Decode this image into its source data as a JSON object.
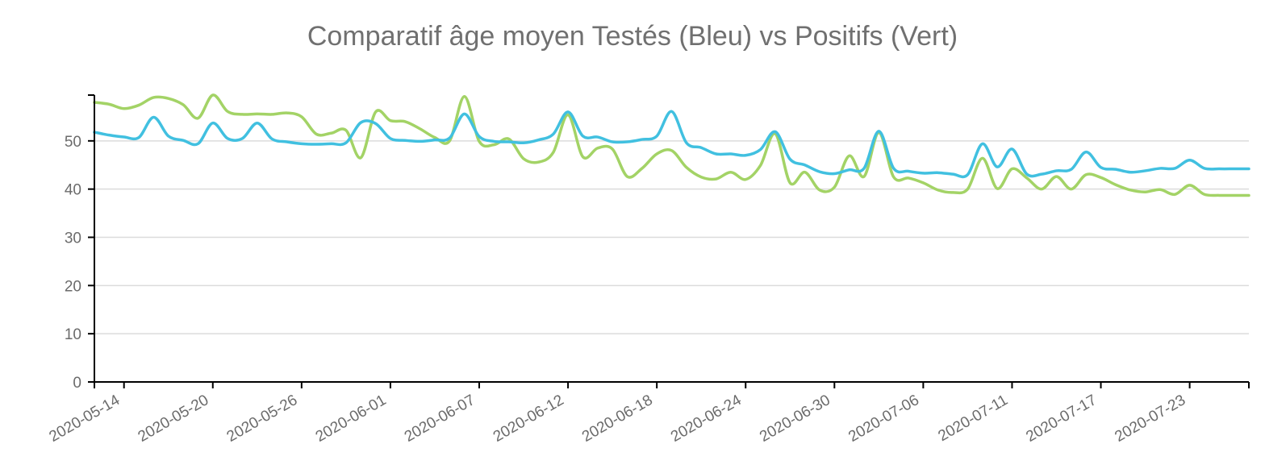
{
  "chart_data": {
    "type": "line",
    "title": "Comparatif âge moyen Testés (Bleu) vs Positifs (Vert)",
    "xlabel": "",
    "ylabel": "",
    "ylim": [
      0,
      60
    ],
    "yticks": [
      0,
      10,
      20,
      30,
      40,
      50
    ],
    "grid": true,
    "legend": "none",
    "x_tick_labels": [
      "2020-05-14",
      "2020-05-20",
      "2020-05-26",
      "2020-06-01",
      "2020-06-07",
      "2020-06-12",
      "2020-06-18",
      "2020-06-24",
      "2020-06-30",
      "2020-07-06",
      "2020-07-11",
      "2020-07-17",
      "2020-07-23"
    ],
    "x_tick_indices": [
      2,
      8,
      14,
      20,
      26,
      32,
      38,
      44,
      50,
      56,
      62,
      68,
      74
    ],
    "x": [
      "2020-05-12",
      "2020-05-13",
      "2020-05-14",
      "2020-05-15",
      "2020-05-16",
      "2020-05-17",
      "2020-05-18",
      "2020-05-19",
      "2020-05-20",
      "2020-05-21",
      "2020-05-22",
      "2020-05-23",
      "2020-05-24",
      "2020-05-25",
      "2020-05-26",
      "2020-05-27",
      "2020-05-28",
      "2020-05-29",
      "2020-05-30",
      "2020-05-31",
      "2020-06-01",
      "2020-06-02",
      "2020-06-03",
      "2020-06-04",
      "2020-06-05",
      "2020-06-06",
      "2020-06-07",
      "2020-06-08",
      "2020-06-09",
      "2020-06-10",
      "2020-06-11",
      "2020-06-12",
      "2020-06-13",
      "2020-06-14",
      "2020-06-15",
      "2020-06-16",
      "2020-06-17",
      "2020-06-18",
      "2020-06-19",
      "2020-06-20",
      "2020-06-21",
      "2020-06-22",
      "2020-06-23",
      "2020-06-24",
      "2020-06-25",
      "2020-06-26",
      "2020-06-27",
      "2020-06-28",
      "2020-06-29",
      "2020-06-30",
      "2020-07-01",
      "2020-07-02",
      "2020-07-03",
      "2020-07-04",
      "2020-07-05",
      "2020-07-06",
      "2020-07-07",
      "2020-07-08",
      "2020-07-09",
      "2020-07-10",
      "2020-07-11",
      "2020-07-12",
      "2020-07-13",
      "2020-07-14",
      "2020-07-15",
      "2020-07-16",
      "2020-07-17",
      "2020-07-18",
      "2020-07-19",
      "2020-07-20",
      "2020-07-21",
      "2020-07-22",
      "2020-07-23",
      "2020-07-24",
      "2020-07-25",
      "2020-07-26",
      "2020-07-27",
      "2020-07-28",
      "2020-07-29"
    ],
    "series": [
      {
        "color": "#41c0e0",
        "values": [
          51.8,
          51.2,
          50.8,
          50.7,
          54.9,
          51.0,
          50.1,
          49.4,
          53.7,
          50.5,
          50.5,
          53.7,
          50.4,
          49.8,
          49.4,
          49.3,
          49.4,
          49.6,
          53.8,
          53.6,
          50.5,
          50.1,
          49.9,
          50.2,
          50.6,
          55.6,
          50.9,
          49.9,
          49.8,
          49.6,
          50.2,
          51.4,
          56.0,
          51.0,
          50.8,
          49.8,
          49.8,
          50.3,
          51.0,
          56.1,
          49.6,
          48.6,
          47.3,
          47.3,
          47.0,
          48.2,
          51.9,
          46.2,
          45.0,
          43.6,
          43.2,
          44.0,
          44.3,
          52.0,
          44.3,
          43.7,
          43.3,
          43.4,
          43.1,
          43.0,
          49.4,
          44.6,
          48.3,
          43.1,
          43.1,
          43.8,
          44.1,
          47.7,
          44.5,
          44.1,
          43.5,
          43.8,
          44.3,
          44.3,
          46.0,
          44.3,
          44.2,
          44.2,
          44.2
        ]
      },
      {
        "color": "#a3d366",
        "values": [
          58.0,
          57.6,
          56.7,
          57.4,
          59.0,
          58.8,
          57.5,
          54.7,
          59.5,
          56.1,
          55.5,
          55.6,
          55.5,
          55.8,
          55.0,
          51.4,
          51.6,
          52.2,
          46.5,
          56.0,
          54.2,
          54.0,
          52.5,
          50.7,
          50.0,
          59.2,
          49.9,
          49.2,
          50.4,
          46.3,
          45.6,
          47.6,
          55.4,
          46.7,
          48.5,
          48.3,
          42.6,
          44.3,
          47.3,
          48.0,
          44.5,
          42.5,
          42.1,
          43.5,
          42.0,
          44.9,
          51.5,
          41.3,
          43.5,
          39.8,
          40.4,
          46.9,
          42.6,
          51.7,
          42.5,
          42.3,
          41.3,
          39.8,
          39.3,
          40.0,
          46.4,
          40.1,
          44.2,
          42.3,
          40.0,
          42.6,
          40.0,
          43.0,
          42.4,
          40.9,
          39.8,
          39.4,
          39.9,
          38.9,
          40.8,
          38.9,
          38.7,
          38.7,
          38.7
        ]
      }
    ]
  }
}
